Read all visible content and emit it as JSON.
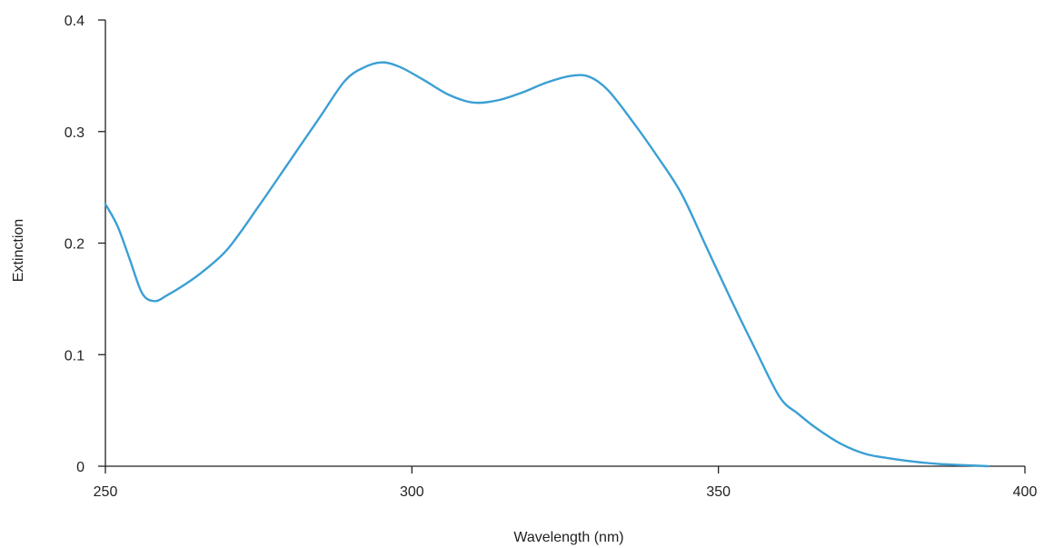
{
  "chart_data": {
    "type": "line",
    "title": "",
    "xlabel": "Wavelength (nm)",
    "ylabel": "Extinction",
    "xlim": [
      250,
      400
    ],
    "ylim": [
      0,
      0.4
    ],
    "x_ticks": [
      250,
      300,
      350,
      400
    ],
    "x_tick_labels": [
      "250",
      "300",
      "350",
      "400"
    ],
    "y_ticks": [
      0,
      0.1,
      0.2,
      0.3,
      0.4
    ],
    "y_tick_labels": [
      "0",
      "0.1",
      "0.2",
      "0.3",
      "0.4"
    ],
    "grid": false,
    "legend": "none",
    "colors": {
      "line": "#3b9fd4",
      "axis": "#222222"
    },
    "series": [
      {
        "x": [
          250,
          252,
          254,
          256,
          258,
          260,
          263,
          266,
          270,
          275,
          280,
          285,
          289,
          292,
          295,
          298,
          302,
          306,
          310,
          314,
          318,
          322,
          326,
          329,
          332,
          336,
          340,
          344,
          348,
          352,
          356,
          360,
          363,
          366,
          370,
          374,
          378,
          382,
          386,
          390,
          394
        ],
        "y": [
          0.235,
          0.215,
          0.185,
          0.155,
          0.148,
          0.153,
          0.163,
          0.175,
          0.195,
          0.233,
          0.273,
          0.313,
          0.345,
          0.357,
          0.362,
          0.358,
          0.346,
          0.333,
          0.326,
          0.328,
          0.335,
          0.344,
          0.35,
          0.349,
          0.337,
          0.309,
          0.278,
          0.244,
          0.197,
          0.15,
          0.105,
          0.062,
          0.047,
          0.034,
          0.02,
          0.011,
          0.007,
          0.004,
          0.002,
          0.001,
          0.0
        ]
      }
    ]
  }
}
